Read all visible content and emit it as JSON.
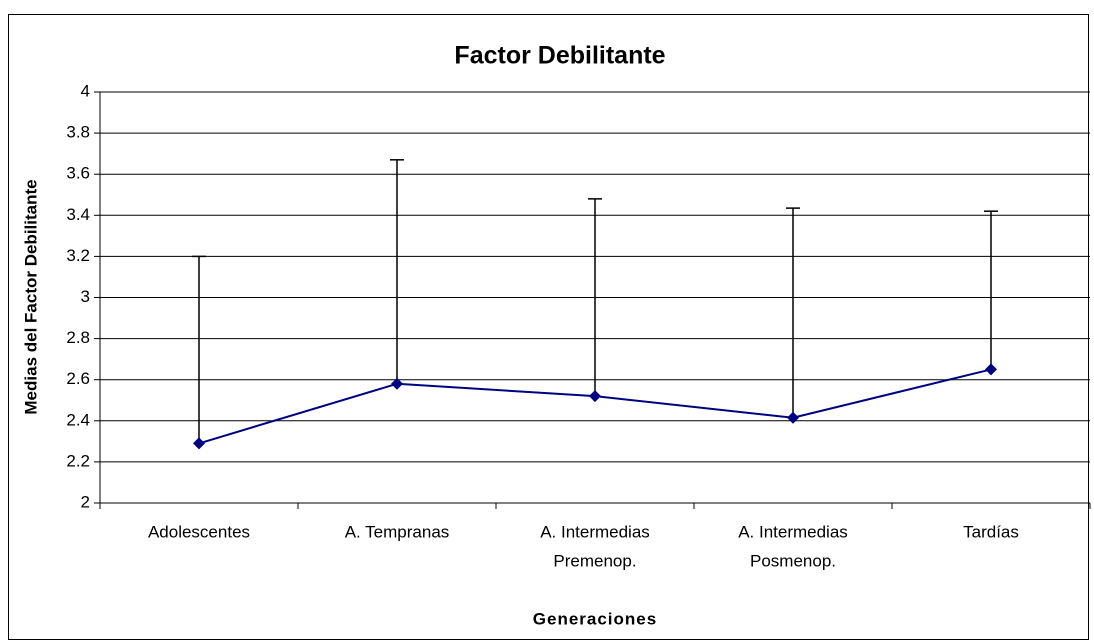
{
  "chart_data": {
    "type": "line",
    "title": "Factor Debilitante",
    "x_label": "Generaciones",
    "y_label": "Medias del Factor Debilitante",
    "categories": [
      [
        "Adolescentes"
      ],
      [
        "A. Tempranas"
      ],
      [
        "A. Intermedias",
        "Premenop."
      ],
      [
        "A. Intermedias",
        "Posmenop."
      ],
      [
        "Tardías"
      ]
    ],
    "series": [
      {
        "color": "#000080",
        "values": [
          2.29,
          2.58,
          2.52,
          2.415,
          2.65
        ],
        "errors": [
          0.91,
          1.09,
          0.96,
          1.02,
          0.77
        ]
      }
    ],
    "ylim": [
      2,
      4
    ],
    "yticks": [
      2,
      2.2,
      2.4,
      2.6,
      2.8,
      3,
      3.2,
      3.4,
      3.6,
      3.8,
      4
    ],
    "grid": true
  }
}
